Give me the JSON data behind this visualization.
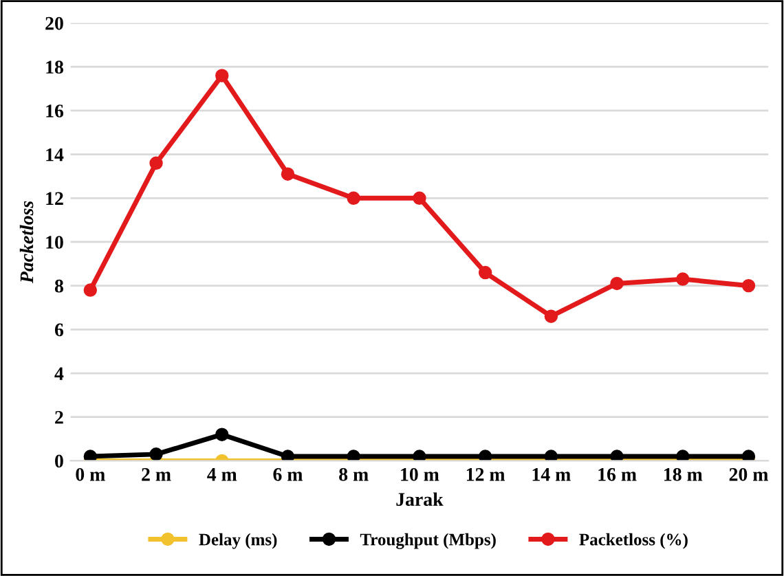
{
  "chart_data": {
    "type": "line",
    "xlabel": "Jarak",
    "ylabel": "Packetloss",
    "categories": [
      "0 m",
      "2 m",
      "4 m",
      "6 m",
      "8 m",
      "10 m",
      "12 m",
      "14 m",
      "16 m",
      "18 m",
      "20 m"
    ],
    "series": [
      {
        "name": "Delay (ms)",
        "color": "#f2c12e",
        "values": [
          0,
          0,
          0,
          0,
          0,
          0,
          0,
          0,
          0,
          0,
          0
        ]
      },
      {
        "name": "Troughput (Mbps)",
        "color": "#000000",
        "values": [
          0.2,
          0.3,
          1.2,
          0.2,
          0.2,
          0.2,
          0.2,
          0.2,
          0.2,
          0.2,
          0.2
        ]
      },
      {
        "name": "Packetloss (%)",
        "color": "#e31a1c",
        "values": [
          7.8,
          13.6,
          17.6,
          13.1,
          12.0,
          12.0,
          8.6,
          6.6,
          8.1,
          8.3,
          8.0
        ]
      }
    ],
    "ylim": [
      0,
      20
    ],
    "yticks": [
      0,
      2,
      4,
      6,
      8,
      10,
      12,
      14,
      16,
      18,
      20
    ],
    "grid": "y",
    "legend": "bottom",
    "marker": "circle",
    "line_style": "solid"
  }
}
